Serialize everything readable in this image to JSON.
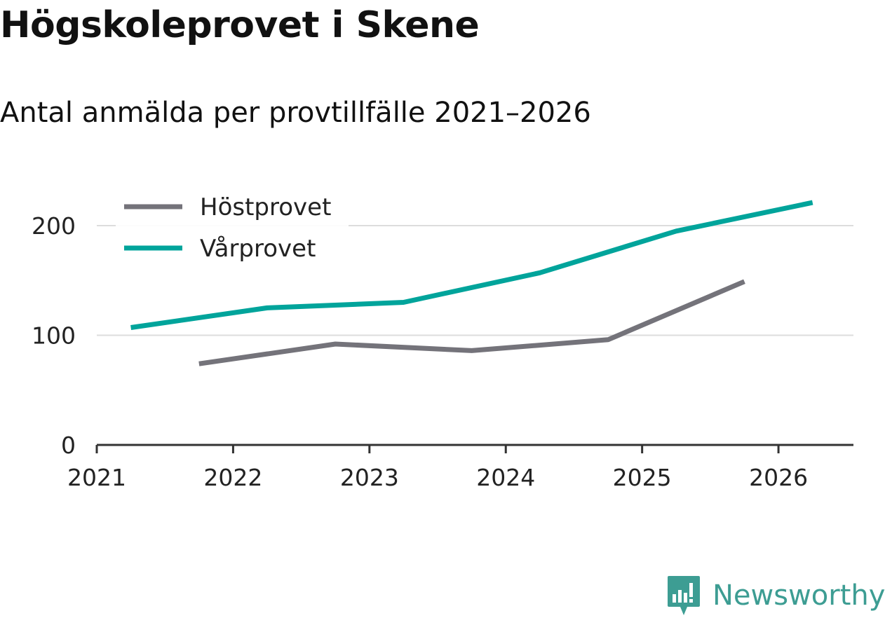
{
  "title": "Högskoleprovet i Skene",
  "subtitle": "Antal anmälda per provtillfälle 2021–2026",
  "brand": {
    "name": "Newsworthy",
    "icon": "bar-chart-speech-bubble-icon",
    "color": "#3d9d93"
  },
  "chart_data": {
    "type": "line",
    "title": "Högskoleprovet i Skene",
    "subtitle": "Antal anmälda per provtillfälle 2021–2026",
    "xlabel": "",
    "ylabel": "",
    "xlim": [
      2021,
      2026.55
    ],
    "ylim": [
      0,
      200
    ],
    "x_ticks": [
      "2021",
      "2022",
      "2023",
      "2024",
      "2025",
      "2026"
    ],
    "y_ticks": [
      "0",
      "100",
      "200"
    ],
    "grid": true,
    "legend_position": "top-left",
    "series": [
      {
        "name": "Höstprovet",
        "color": "#74737a",
        "x": [
          2021.75,
          2022.75,
          2023.75,
          2024.75,
          2025.75
        ],
        "y": [
          74,
          92,
          86,
          96,
          149
        ]
      },
      {
        "name": "Vårprovet",
        "color": "#00a49b",
        "x": [
          2021.25,
          2022.25,
          2023.25,
          2024.25,
          2025.25,
          2026.25
        ],
        "y": [
          107,
          125,
          130,
          157,
          195,
          221
        ]
      }
    ]
  }
}
